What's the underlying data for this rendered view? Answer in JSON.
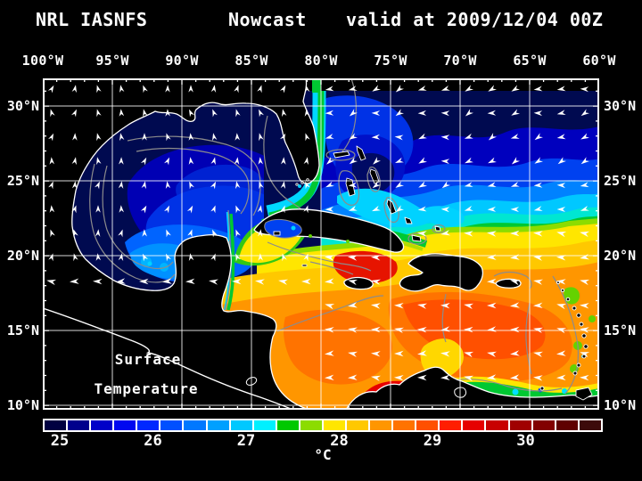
{
  "title": {
    "left": "NRL IASNFS",
    "center": "Nowcast",
    "right": "valid at 2009/12/04 00Z"
  },
  "axes": {
    "lon_labels": [
      "100°W",
      "95°W",
      "90°W",
      "85°W",
      "80°W",
      "75°W",
      "70°W",
      "65°W",
      "60°W"
    ],
    "lat_labels": [
      "30°N",
      "25°N",
      "20°N",
      "15°N",
      "10°N"
    ]
  },
  "annotation": {
    "line1": "Surface",
    "line2": "Temperature"
  },
  "colorbar": {
    "unit": "°C",
    "tick_labels": [
      "25",
      "26",
      "27",
      "28",
      "29",
      "30"
    ],
    "segment_colors": [
      "#000041",
      "#00008c",
      "#0000c8",
      "#0008f0",
      "#0028ff",
      "#0050ff",
      "#0078ff",
      "#00a0ff",
      "#00c8ff",
      "#00f0ff",
      "#00c800",
      "#8cdc00",
      "#ffe600",
      "#ffc800",
      "#ff9600",
      "#ff7300",
      "#ff5000",
      "#ff1e00",
      "#e60000",
      "#c80000",
      "#a00000",
      "#820000",
      "#5f0000",
      "#3c0a0a"
    ]
  },
  "map_colors": {
    "land": "#000000",
    "coastline": "#ffffff",
    "bathymetry_contour": "#8c8c8c",
    "graticule": "#ffffff",
    "vector_arrows": "#ffffff",
    "out_of_domain": "#000000"
  },
  "chart_data": {
    "type": "heatmap",
    "title": "NRL IASNFS Nowcast valid at 2009/12/04 00Z",
    "variable": "Surface Temperature",
    "unit": "°C",
    "scale_ticks": [
      25,
      26,
      27,
      28,
      29,
      30
    ],
    "scale_range": [
      24.75,
      30.75
    ],
    "lon_range_deg_west": [
      100,
      60
    ],
    "lat_range_deg_north": [
      10,
      30
    ],
    "graticule_spacing_deg": 5,
    "overlays": [
      "surface current vector arrows",
      "bathymetry contours",
      "coastlines",
      "5-degree graticule"
    ],
    "regions_depicted": {
      "gulf_of_mexico_sst_c": "25-26 (cool blues)",
      "nw_atlantic_sst_c": "24.75-27 (dark blue to cyan bands)",
      "caribbean_sea_sst_c": "28-29.5 (orange to red)",
      "venezuela_coast_upwelling_c": "26-27 (green/cyan band)"
    }
  }
}
